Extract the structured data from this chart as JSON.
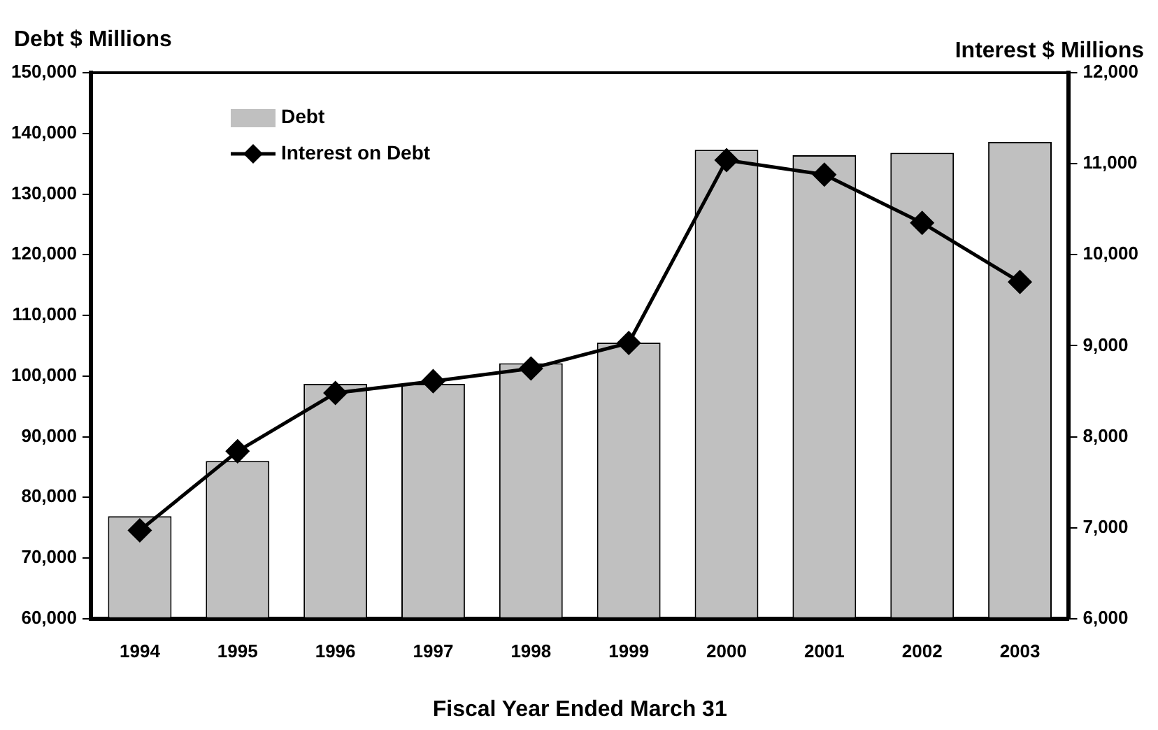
{
  "chart_data": {
    "type": "bar",
    "ylabel": "Debt $ Millions",
    "y2label": "Interest $ Millions",
    "xlabel": "Fiscal Year Ended March 31",
    "categories": [
      "1994",
      "1995",
      "1996",
      "1997",
      "1998",
      "1999",
      "2000",
      "2001",
      "2002",
      "2003"
    ],
    "series": [
      {
        "name": "Debt",
        "color": "#c0c0c0",
        "values": [
          76900,
          86000,
          98700,
          98700,
          102100,
          105500,
          137300,
          136400,
          136800,
          138600
        ]
      },
      {
        "name": "Interest on Debt",
        "type": "line",
        "axis": "y2",
        "color": "#000000",
        "values": [
          6970,
          7840,
          8480,
          8610,
          8750,
          9030,
          11040,
          10880,
          10350,
          9700
        ]
      }
    ],
    "ylim": [
      60000,
      150000
    ],
    "yticks": [
      {
        "value": 60000,
        "label": "60,000"
      },
      {
        "value": 70000,
        "label": "70,000"
      },
      {
        "value": 80000,
        "label": "80,000"
      },
      {
        "value": 90000,
        "label": "90,000"
      },
      {
        "value": 100000,
        "label": "100,000"
      },
      {
        "value": 110000,
        "label": "110,000"
      },
      {
        "value": 120000,
        "label": "120,000"
      },
      {
        "value": 130000,
        "label": "130,000"
      },
      {
        "value": 140000,
        "label": "140,000"
      },
      {
        "value": 150000,
        "label": "150,000"
      }
    ],
    "y2lim": [
      6000,
      12000
    ],
    "y2ticks": [
      {
        "value": 6000,
        "label": "6,000"
      },
      {
        "value": 7000,
        "label": "7,000"
      },
      {
        "value": 8000,
        "label": "8,000"
      },
      {
        "value": 9000,
        "label": "9,000"
      },
      {
        "value": 10000,
        "label": "10,000"
      },
      {
        "value": 11000,
        "label": "11,000"
      },
      {
        "value": 12000,
        "label": "12,000"
      }
    ],
    "grid": false,
    "legend": "top left",
    "marker": "diamond",
    "line_style": "solid"
  }
}
